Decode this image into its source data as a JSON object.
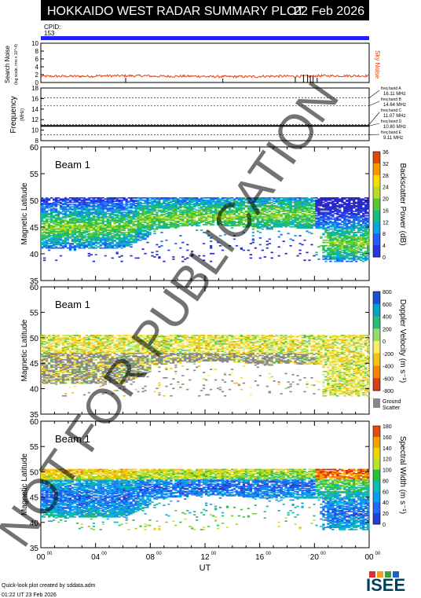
{
  "header": {
    "title": "HOKKAIDO WEST RADAR SUMMARY PLOT",
    "date": "22 Feb 2026"
  },
  "cpid": {
    "label": "CPID:",
    "value": "153"
  },
  "noise_panel": {
    "ylabel": "Search Noise",
    "yunit": "(log scale, rms x 10^-4)",
    "right_label": "Sky Noise",
    "ticks": [
      "10",
      "8",
      "6",
      "4",
      "2",
      "0"
    ]
  },
  "freq_panel": {
    "ylabel": "Frequency",
    "yunit": "(MHz)",
    "ticks": [
      "18",
      "16",
      "14",
      "12",
      "10",
      "8"
    ],
    "bands": [
      {
        "name": "freq band A",
        "value": "16.11 MHz"
      },
      {
        "name": "freq band B",
        "value": "14.64 MHz"
      },
      {
        "name": "freq band C",
        "value": "11.07 MHz"
      },
      {
        "name": "freq band D",
        "value": "10.80 MHz"
      },
      {
        "name": "freq band E",
        "value": "9.11 MHz"
      }
    ]
  },
  "beam_panels": [
    {
      "beam_label": "Beam  1",
      "ylabel": "Magnetic Latitude",
      "yticks": [
        "60",
        "55",
        "50",
        "45",
        "40",
        "35"
      ],
      "colorbar_label": "Backscatter Power (dB)",
      "colorbar_ticks": [
        "36",
        "32",
        "28",
        "24",
        "20",
        "16",
        "12",
        "8",
        "4",
        "0"
      ]
    },
    {
      "beam_label": "Beam  1",
      "ylabel": "Magnetic Latitude",
      "yticks": [
        "60",
        "55",
        "50",
        "45",
        "40",
        "35"
      ],
      "colorbar_label": "Doppler Velocity (m s⁻¹)",
      "colorbar_ticks": [
        "800",
        "600",
        "400",
        "200",
        "0",
        "-200",
        "-400",
        "-600",
        "-800"
      ],
      "ground_scatter_label": "Ground Scatter"
    },
    {
      "beam_label": "Beam  1",
      "ylabel": "Magnetic Latitude",
      "yticks": [
        "60",
        "55",
        "50",
        "45",
        "40",
        "35"
      ],
      "colorbar_label": "Spectral Width (m s⁻¹)",
      "colorbar_ticks": [
        "180",
        "160",
        "140",
        "120",
        "100",
        "80",
        "60",
        "40",
        "20",
        "0"
      ]
    }
  ],
  "xaxis": {
    "ticks": [
      "00",
      "04",
      "08",
      "12",
      "16",
      "20",
      "00"
    ],
    "tick_sup": "00",
    "label": "UT"
  },
  "watermark": "NOT FOR PUBLICATION",
  "footer": {
    "credit": "Quick-look plot created by sddata.adm",
    "timestamp": "01:22 UT 23 Feb 2026",
    "logo": "ISEE"
  },
  "colors": {
    "cpid_bar": "#2020ff",
    "noise_trace": "#e04010",
    "ground_scatter": "#888888"
  },
  "chart_data": [
    {
      "type": "line",
      "title": "Search Noise",
      "ylabel": "Search Noise",
      "ylim": [
        0,
        10
      ],
      "x": [
        0,
        4,
        8,
        12,
        16,
        20,
        24
      ],
      "series": [
        {
          "name": "Sky Noise",
          "values": [
            1.6,
            1.7,
            1.6,
            1.5,
            1.6,
            1.7,
            1.6
          ]
        }
      ]
    },
    {
      "type": "line",
      "ylabel": "Frequency",
      "ylim": [
        8,
        18
      ],
      "x": [
        0,
        24
      ],
      "series": [
        {
          "values": [
            10.8,
            10.8
          ]
        }
      ]
    },
    {
      "type": "heatmap",
      "ylabel": "Magnetic Latitude",
      "ylim": [
        35,
        60
      ],
      "xlim": [
        0,
        24
      ],
      "xlabel": "UT",
      "colorbar_range": [
        0,
        36
      ]
    },
    {
      "type": "heatmap",
      "ylabel": "Magnetic Latitude",
      "ylim": [
        35,
        60
      ],
      "xlim": [
        0,
        24
      ],
      "xlabel": "UT",
      "colorbar_range": [
        -800,
        800
      ]
    },
    {
      "type": "heatmap",
      "ylabel": "Magnetic Latitude",
      "ylim": [
        35,
        60
      ],
      "xlim": [
        0,
        24
      ],
      "xlabel": "UT",
      "colorbar_range": [
        0,
        180
      ]
    }
  ]
}
